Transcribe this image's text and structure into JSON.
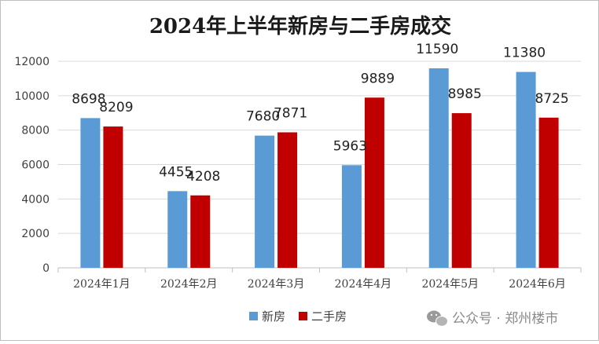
{
  "chart_data": {
    "type": "bar",
    "title": "2024年上半年新房与二手房成交",
    "categories": [
      "2024年1月",
      "2024年2月",
      "2024年3月",
      "2024年4月",
      "2024年5月",
      "2024年6月"
    ],
    "series": [
      {
        "name": "新房",
        "color": "#5b9bd5",
        "values": [
          8698,
          4455,
          7680,
          5963,
          11590,
          11380
        ]
      },
      {
        "name": "二手房",
        "color": "#c00000",
        "values": [
          8209,
          4208,
          7871,
          9889,
          8985,
          8725
        ]
      }
    ],
    "ylim": [
      0,
      12000
    ],
    "yticks": [
      "0",
      "2000",
      "4000",
      "6000",
      "8000",
      "10000",
      "12000"
    ],
    "grid": true,
    "legend_position": "bottom"
  },
  "watermark": {
    "text": "公众号 · 郑州楼市",
    "icon": "wechat-icon"
  }
}
